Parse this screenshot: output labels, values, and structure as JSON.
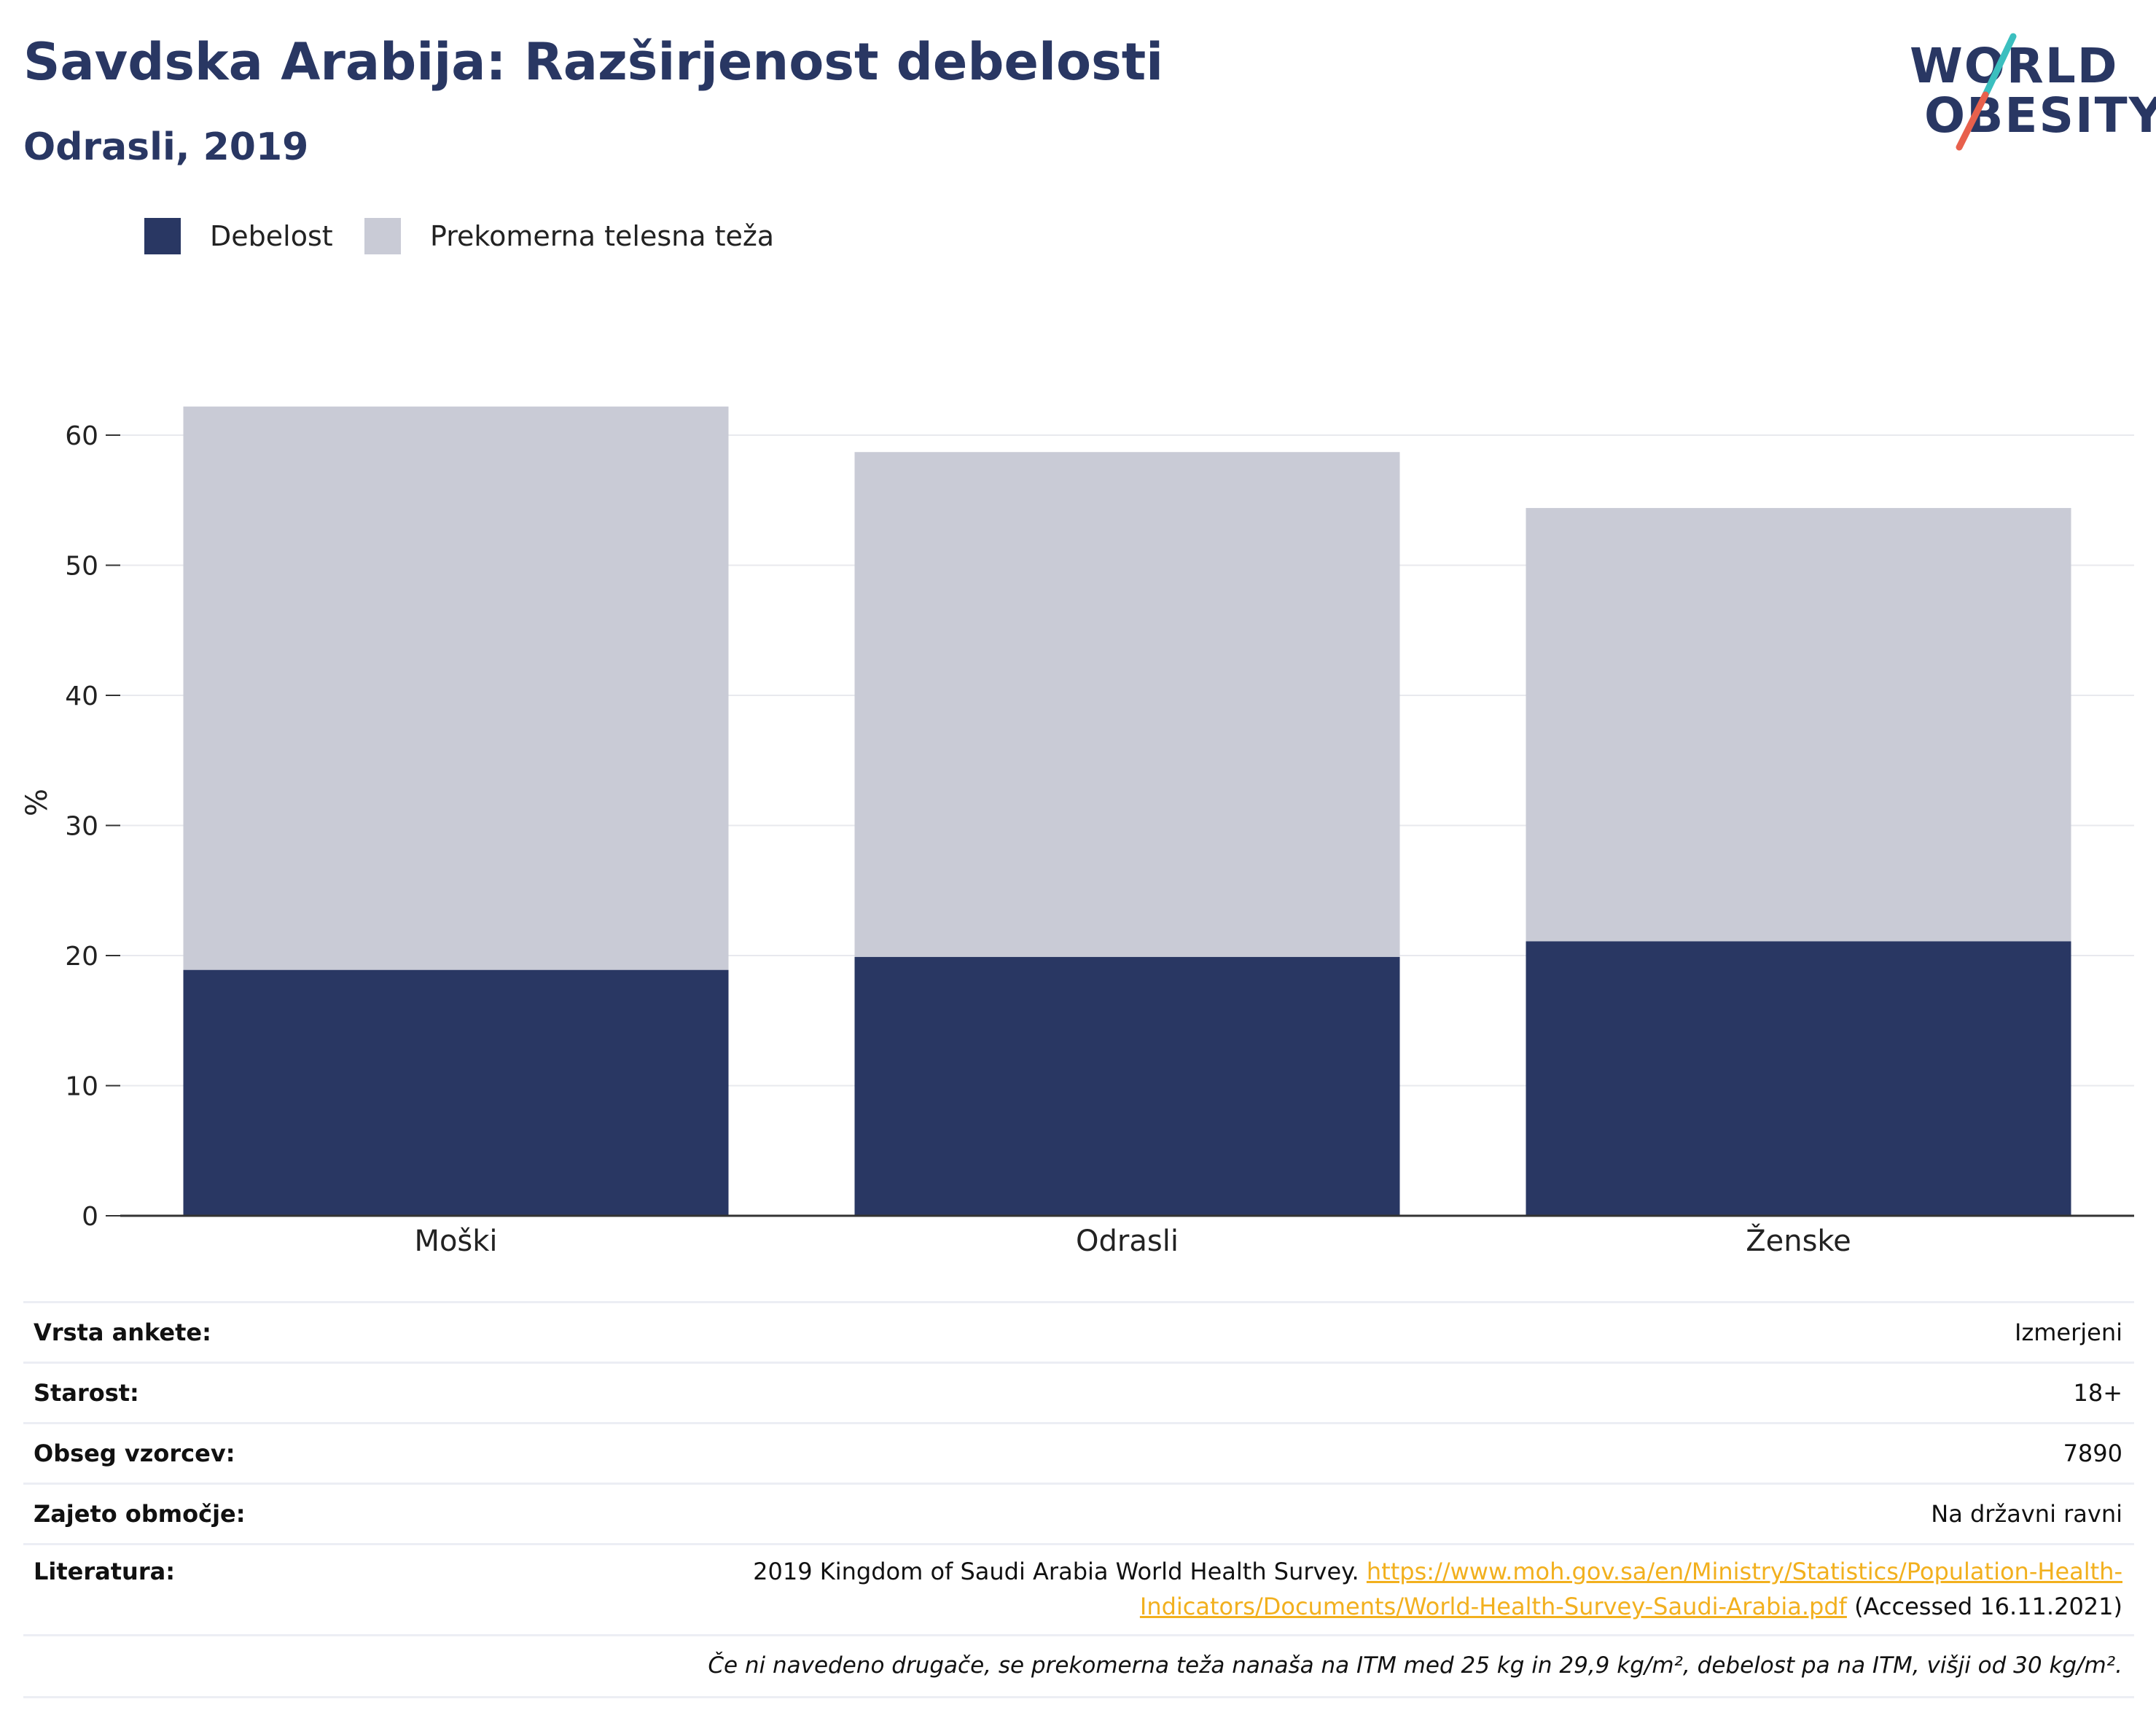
{
  "header": {
    "title": "Savdska Arabija: Razširjenost debelosti",
    "subtitle": "Odrasli, 2019"
  },
  "logo": {
    "line1": "WORLD",
    "line2": "OBESITY",
    "slash_colors": [
      "#3bbfbf",
      "#e8604c"
    ]
  },
  "colors": {
    "obesity": "#293763",
    "overweight": "#c9cbd6",
    "grid": "#e8e9ee",
    "axis": "#333333"
  },
  "legend": [
    {
      "label": "Debelost",
      "color": "#293763"
    },
    {
      "label": "Prekomerna telesna teža",
      "color": "#c9cbd6"
    }
  ],
  "chart_data": {
    "type": "bar",
    "stacked": true,
    "categories": [
      "Moški",
      "Odrasli",
      "Ženske"
    ],
    "series": [
      {
        "name": "Debelost",
        "values": [
          18.9,
          19.9,
          21.1
        ]
      },
      {
        "name": "Prekomerna telesna teža",
        "values": [
          43.3,
          38.8,
          33.3
        ]
      }
    ],
    "ylabel": "%",
    "ylim": [
      0,
      65
    ],
    "yticks": [
      0,
      10,
      20,
      30,
      40,
      50,
      60
    ],
    "grid": true,
    "legend_position": "top-left"
  },
  "info": {
    "rows": [
      {
        "label": "Vrsta ankete:",
        "value": "Izmerjeni"
      },
      {
        "label": "Starost:",
        "value": "18+"
      },
      {
        "label": "Obseg vzorcev:",
        "value": "7890"
      },
      {
        "label": "Zajeto območje:",
        "value": "Na državni ravni"
      }
    ],
    "literature_label": "Literatura:",
    "literature_text": "2019 Kingdom of Saudi Arabia World Health Survey.",
    "literature_link": "https://www.moh.gov.sa/en/Ministry/Statistics/Population-Health-Indicators/Documents/World-Health-Survey-Saudi-Arabia.pdf",
    "literature_accessed": "(Accessed 16.11.2021)",
    "note": "Če ni navedeno drugače, se prekomerna teža nanaša na ITM med 25 kg in 29,9 kg/m², debelost pa na ITM, višji od 30 kg/m²."
  }
}
